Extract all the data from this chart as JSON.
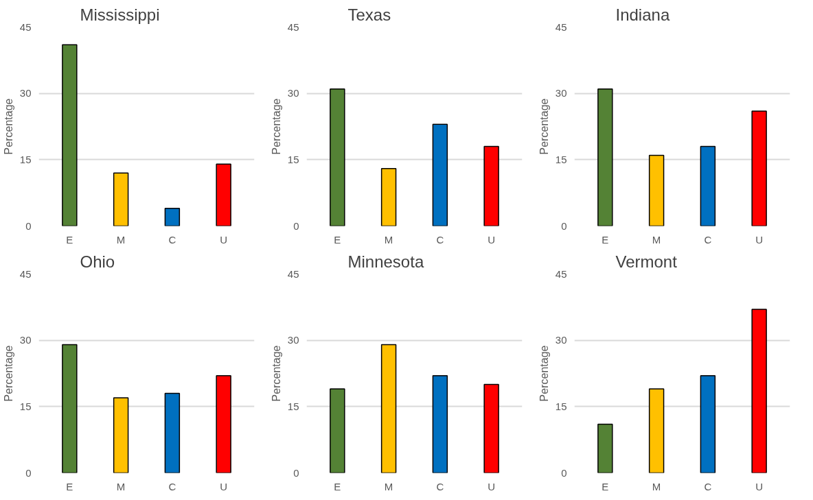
{
  "chart_data": [
    {
      "type": "bar",
      "title": "Mississippi",
      "ylabel": "Percentage",
      "categories": [
        "E",
        "M",
        "C",
        "U"
      ],
      "values": [
        41,
        12,
        4,
        14
      ],
      "colors": [
        "#548235",
        "#ffc000",
        "#0070c0",
        "#ff0000"
      ],
      "ylim": [
        0,
        45
      ],
      "yticks": [
        0,
        15,
        30,
        45
      ],
      "grid": "y"
    },
    {
      "type": "bar",
      "title": "Texas",
      "ylabel": "Percentage",
      "categories": [
        "E",
        "M",
        "C",
        "U"
      ],
      "values": [
        31,
        13,
        23,
        18
      ],
      "colors": [
        "#548235",
        "#ffc000",
        "#0070c0",
        "#ff0000"
      ],
      "ylim": [
        0,
        45
      ],
      "yticks": [
        0,
        15,
        30,
        45
      ],
      "grid": "y"
    },
    {
      "type": "bar",
      "title": "Indiana",
      "ylabel": "Percentage",
      "categories": [
        "E",
        "M",
        "C",
        "U"
      ],
      "values": [
        31,
        16,
        18,
        26
      ],
      "colors": [
        "#548235",
        "#ffc000",
        "#0070c0",
        "#ff0000"
      ],
      "ylim": [
        0,
        45
      ],
      "yticks": [
        0,
        15,
        30,
        45
      ],
      "grid": "y"
    },
    {
      "type": "bar",
      "title": "Ohio",
      "ylabel": "Percentage",
      "categories": [
        "E",
        "M",
        "C",
        "U"
      ],
      "values": [
        29,
        17,
        18,
        22
      ],
      "colors": [
        "#548235",
        "#ffc000",
        "#0070c0",
        "#ff0000"
      ],
      "ylim": [
        0,
        45
      ],
      "yticks": [
        0,
        15,
        30,
        45
      ],
      "grid": "y"
    },
    {
      "type": "bar",
      "title": "Minnesota",
      "ylabel": "Percentage",
      "categories": [
        "E",
        "M",
        "C",
        "U"
      ],
      "values": [
        19,
        29,
        22,
        20
      ],
      "colors": [
        "#548235",
        "#ffc000",
        "#0070c0",
        "#ff0000"
      ],
      "ylim": [
        0,
        45
      ],
      "yticks": [
        0,
        15,
        30,
        45
      ],
      "grid": "y"
    },
    {
      "type": "bar",
      "title": "Vermont",
      "ylabel": "Percentage",
      "categories": [
        "E",
        "M",
        "C",
        "U"
      ],
      "values": [
        11,
        19,
        22,
        37
      ],
      "colors": [
        "#548235",
        "#ffc000",
        "#0070c0",
        "#ff0000"
      ],
      "ylim": [
        0,
        45
      ],
      "yticks": [
        0,
        15,
        30,
        45
      ],
      "grid": "y"
    }
  ]
}
